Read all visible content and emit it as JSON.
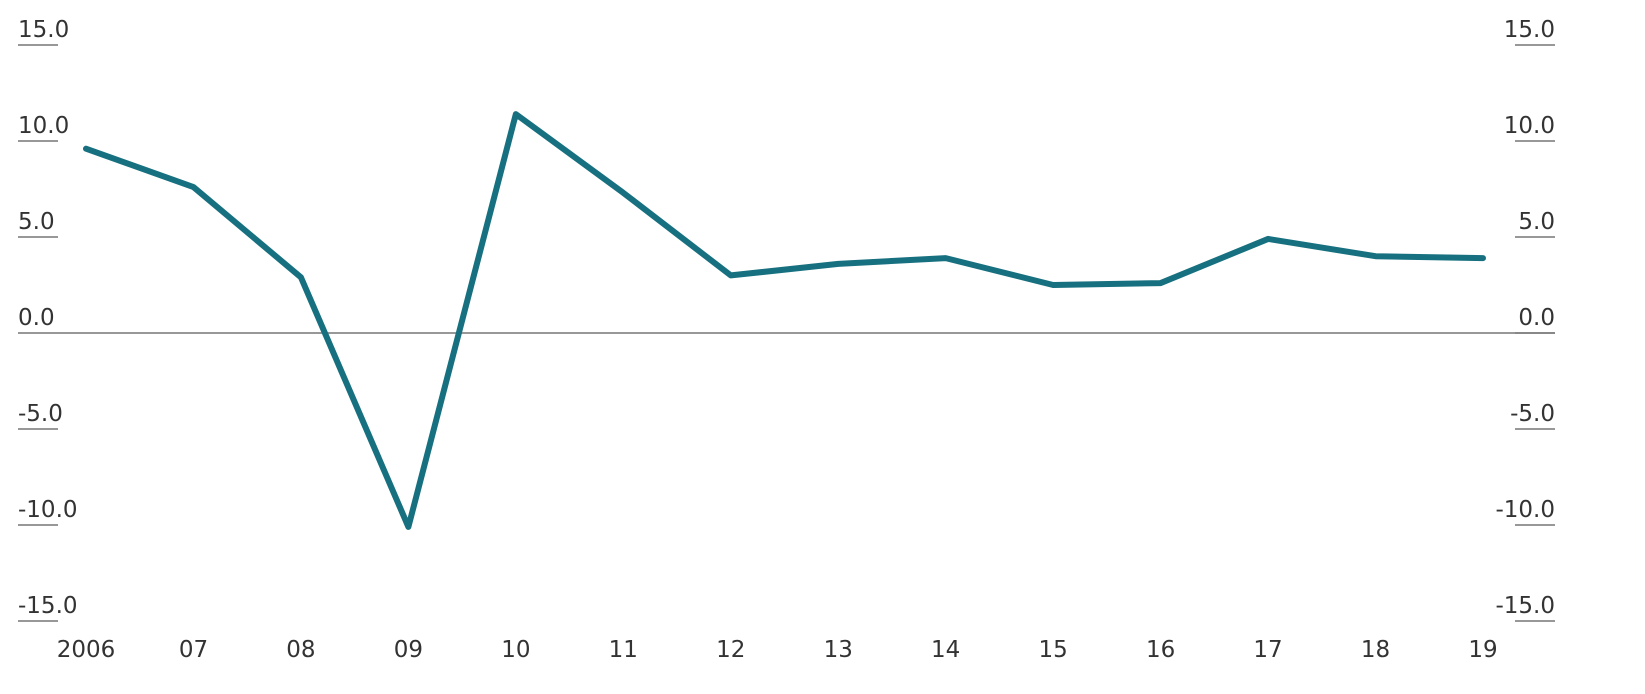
{
  "chart_data": {
    "type": "line",
    "categories": [
      "2006",
      "07",
      "08",
      "09",
      "10",
      "11",
      "12",
      "13",
      "14",
      "15",
      "16",
      "17",
      "18",
      "19"
    ],
    "series": [
      {
        "color": "#17707f",
        "values": [
          9.6,
          7.6,
          2.9,
          -10.1,
          11.4,
          7.3,
          3.0,
          3.6,
          3.9,
          2.5,
          2.6,
          4.9,
          4.0,
          3.9
        ]
      }
    ],
    "ylim": [
      -15,
      15
    ],
    "yticks": [
      {
        "value": 15,
        "label": "15.0"
      },
      {
        "value": 10,
        "label": "10.0"
      },
      {
        "value": 5,
        "label": "5.0"
      },
      {
        "value": 0,
        "label": "0.0"
      },
      {
        "value": -5,
        "label": "-5.0"
      },
      {
        "value": -10,
        "label": "-10.0"
      },
      {
        "value": -15,
        "label": "-15.0"
      }
    ],
    "y2lim": [
      -15,
      15
    ],
    "y2ticks": [
      {
        "value": 15,
        "label": "15.0"
      },
      {
        "value": 10,
        "label": "10.0"
      },
      {
        "value": 5,
        "label": "5.0"
      },
      {
        "value": 0,
        "label": "0.0"
      },
      {
        "value": -5,
        "label": "-5.0"
      },
      {
        "value": -10,
        "label": "-10.0"
      },
      {
        "value": -15,
        "label": "-15.0"
      }
    ]
  }
}
